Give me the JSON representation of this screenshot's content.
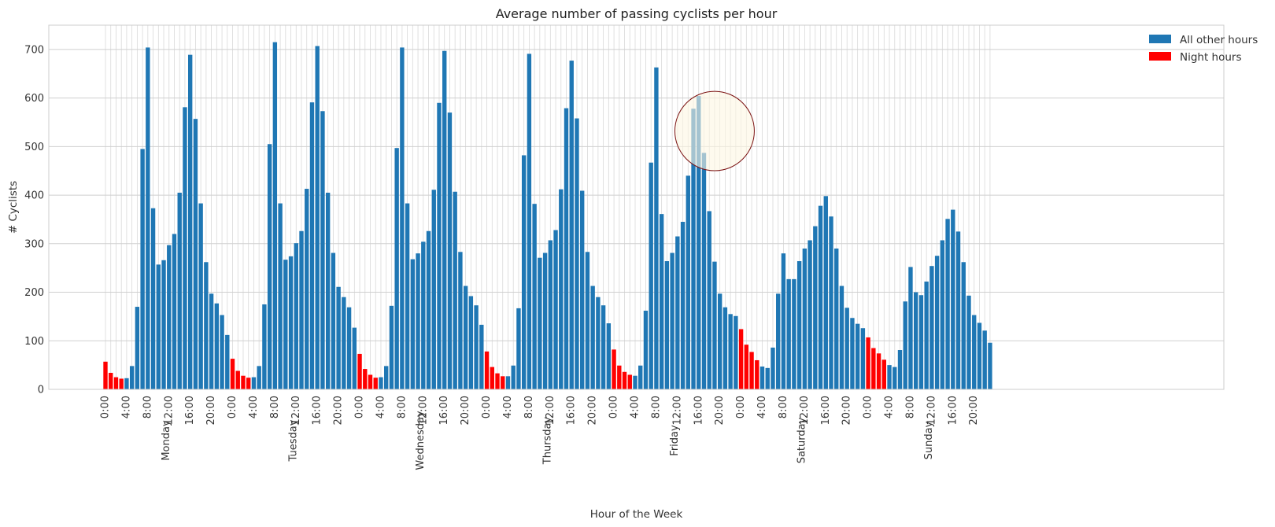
{
  "chart_data": {
    "type": "bar",
    "title": "Average number of passing cyclists per hour",
    "xlabel": "Hour of the Week",
    "ylabel": "# Cyclists",
    "ylim": [
      0,
      750
    ],
    "yticks": [
      0,
      100,
      200,
      300,
      400,
      500,
      600,
      700
    ],
    "grid": true,
    "legend_position": "top-right",
    "hour_tick_labels": [
      "0:00",
      "4:00",
      "8:00",
      "12:00",
      "16:00",
      "20:00"
    ],
    "days": [
      "Monday",
      "Tuesday",
      "Wednesday",
      "Thursday",
      "Friday",
      "Saturday",
      "Sunday"
    ],
    "series": [
      {
        "name": "All other hours",
        "color": "#1f77b4"
      },
      {
        "name": "Night hours",
        "color": "#ff0000"
      }
    ],
    "night_hours": [
      0,
      1,
      2,
      3
    ],
    "values": [
      57,
      34,
      25,
      22,
      23,
      48,
      170,
      495,
      704,
      373,
      257,
      266,
      297,
      320,
      405,
      581,
      689,
      557,
      383,
      262,
      197,
      177,
      153,
      112,
      63,
      38,
      28,
      24,
      25,
      48,
      175,
      505,
      715,
      383,
      267,
      274,
      301,
      326,
      413,
      591,
      707,
      573,
      405,
      281,
      211,
      190,
      169,
      127,
      73,
      42,
      30,
      24,
      25,
      48,
      172,
      497,
      704,
      383,
      268,
      280,
      304,
      326,
      411,
      590,
      697,
      570,
      407,
      283,
      213,
      192,
      173,
      133,
      78,
      46,
      33,
      27,
      27,
      49,
      167,
      482,
      691,
      382,
      271,
      281,
      307,
      328,
      412,
      579,
      677,
      558,
      409,
      283,
      213,
      190,
      173,
      136,
      82,
      49,
      36,
      30,
      28,
      49,
      162,
      467,
      663,
      361,
      264,
      281,
      315,
      345,
      440,
      578,
      604,
      487,
      367,
      263,
      197,
      169,
      155,
      151,
      124,
      92,
      77,
      60,
      47,
      44,
      86,
      197,
      280,
      227,
      227,
      264,
      290,
      307,
      336,
      378,
      398,
      356,
      290,
      213,
      168,
      147,
      135,
      126,
      107,
      85,
      74,
      61,
      50,
      46,
      81,
      181,
      252,
      200,
      194,
      222,
      254,
      275,
      307,
      351,
      370,
      325,
      262,
      193,
      153,
      137,
      121,
      96
    ],
    "annotations": [
      {
        "type": "circle",
        "x_hour": 115,
        "y_center": 532,
        "r_hours": 7.5,
        "fill": "#fdf6e3",
        "stroke": "#7a1010"
      }
    ]
  }
}
